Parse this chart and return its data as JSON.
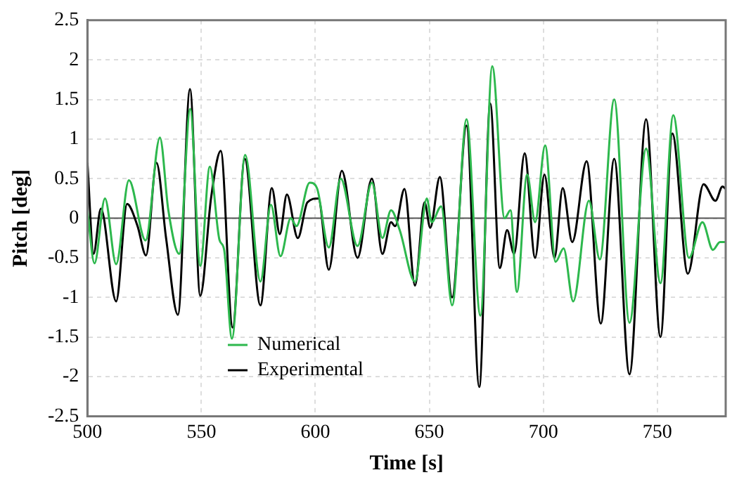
{
  "chart_data": {
    "type": "line",
    "xlabel": "Time [s]",
    "ylabel": "Pitch [deg]",
    "xlim": [
      500,
      780
    ],
    "xticks": [
      500,
      550,
      600,
      650,
      700,
      750
    ],
    "ylim": [
      -2.5,
      2.5
    ],
    "yticks": [
      -2.5,
      -2,
      -1.5,
      -1,
      -0.5,
      0,
      0.5,
      1,
      1.5,
      2,
      2.5
    ],
    "grid": true,
    "legend": "bottom left",
    "marker": "none",
    "line_style": "solid",
    "ref_lines": [
      {
        "axis": "y",
        "value": 0,
        "color": "#555555"
      }
    ],
    "series": [
      {
        "name": "Numerical",
        "color": "#2db84d",
        "x": [
          500,
          503.1,
          507.7,
          512.6,
          518.2,
          525.5,
          531.8,
          535.5,
          540.3,
          545.1,
          549.5,
          553.7,
          557.9,
          560,
          563.4,
          569.2,
          575.9,
          580.5,
          584.7,
          589.2,
          591.7,
          597.5,
          600.7,
          605.9,
          611.1,
          618.5,
          624.8,
          629.4,
          633.2,
          637,
          643.7,
          648.9,
          651,
          655.2,
          660,
          666.3,
          672.4,
          677.6,
          683,
          685.6,
          688.4,
          692.9,
          696.4,
          700.8,
          705.4,
          708.9,
          713.1,
          720,
          724.8,
          731.1,
          737.8,
          745.1,
          751.4,
          757,
          763.9,
          769.8,
          774.4,
          777.5,
          780
        ],
        "values": [
          0.1,
          -0.57,
          0.25,
          -0.58,
          0.48,
          -0.28,
          1.02,
          0.1,
          -0.45,
          1.38,
          -0.6,
          0.65,
          -0.27,
          -0.4,
          -1.52,
          0.8,
          -0.8,
          0.17,
          -0.48,
          0.0,
          -0.1,
          0.45,
          0.38,
          -0.37,
          0.5,
          -0.35,
          0.45,
          -0.25,
          0.1,
          -0.15,
          -0.8,
          0.25,
          -0.05,
          0.15,
          -1.1,
          1.25,
          -1.23,
          1.92,
          0.0,
          0.1,
          -0.93,
          0.55,
          -0.05,
          0.92,
          -0.55,
          -0.38,
          -1.05,
          0.22,
          -0.52,
          1.5,
          -1.32,
          0.88,
          -0.82,
          1.3,
          -0.5,
          -0.05,
          -0.4,
          -0.3,
          -0.3
        ]
      },
      {
        "name": "Experimental",
        "color": "#000000",
        "x": [
          500,
          502.7,
          505.9,
          512.6,
          517.4,
          522,
          525.7,
          530.3,
          534.5,
          539.7,
          545,
          549.5,
          554.3,
          558.5,
          563.7,
          569,
          575.9,
          580.9,
          584.4,
          587.5,
          592.3,
          596.5,
          601.3,
          605.9,
          611.6,
          618.5,
          624.8,
          629.4,
          633.2,
          635,
          639.1,
          643.7,
          647.9,
          650.4,
          654.6,
          660,
          666.3,
          671.9,
          676.7,
          680.9,
          684.1,
          687.2,
          691.8,
          696.4,
          700.5,
          704.9,
          708.5,
          712.7,
          719,
          725.2,
          731.1,
          737.8,
          745.1,
          751.4,
          756.6,
          763.4,
          770.3,
          775.5,
          778.6,
          780
        ],
        "values": [
          0.7,
          -0.45,
          0.12,
          -1.05,
          0.18,
          -0.1,
          -0.47,
          0.7,
          -0.25,
          -1.22,
          1.63,
          -0.98,
          0.27,
          0.85,
          -1.38,
          0.75,
          -1.1,
          0.38,
          -0.2,
          0.3,
          -0.25,
          0.2,
          0.25,
          -0.65,
          0.6,
          -0.5,
          0.5,
          -0.45,
          -0.05,
          -0.1,
          0.37,
          -0.85,
          0.2,
          -0.12,
          0.52,
          -1.0,
          1.17,
          -2.13,
          1.45,
          -0.63,
          -0.15,
          -0.45,
          0.82,
          -0.5,
          0.55,
          -0.5,
          0.38,
          -0.3,
          0.72,
          -1.33,
          0.75,
          -1.97,
          1.25,
          -1.5,
          1.07,
          -0.7,
          0.43,
          0.22,
          0.4,
          0.37
        ]
      }
    ]
  }
}
